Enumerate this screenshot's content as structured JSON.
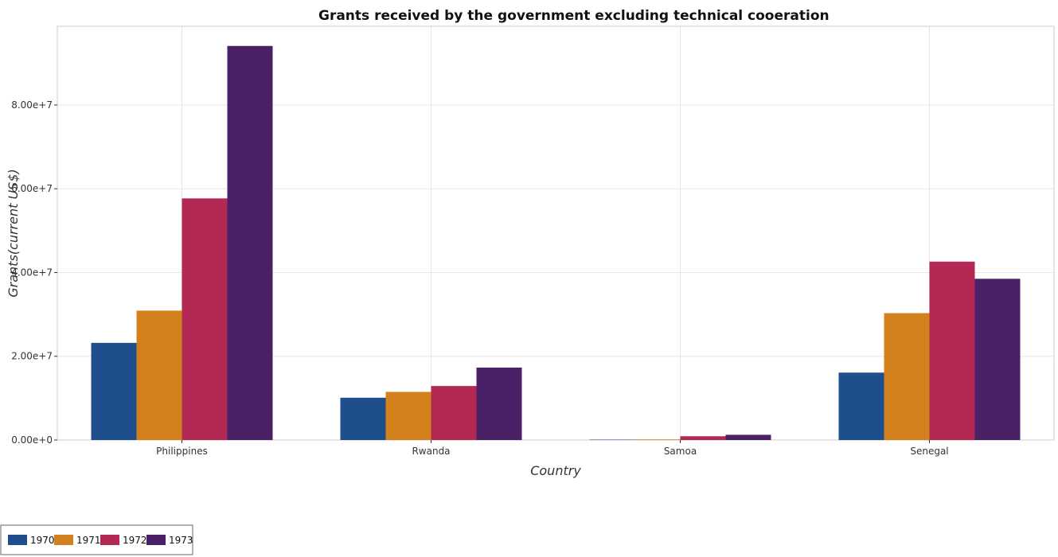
{
  "chart_data": {
    "type": "bar",
    "title": "Grants received by the government excluding technical cooeration",
    "xlabel": "Country",
    "ylabel": "Grants(current US$)",
    "categories": [
      "Philippines",
      "Rwanda",
      "Samoa",
      "Senegal"
    ],
    "series": [
      {
        "name": "1970",
        "color": "#1f4e8c",
        "values": [
          23200000,
          10100000,
          100000,
          16100000
        ]
      },
      {
        "name": "1971",
        "color": "#d2811c",
        "values": [
          30900000,
          11500000,
          150000,
          30300000
        ]
      },
      {
        "name": "1972",
        "color": "#b22a53",
        "values": [
          57700000,
          12900000,
          900000,
          42600000
        ]
      },
      {
        "name": "1973",
        "color": "#4a2066",
        "values": [
          94100000,
          17300000,
          1250000,
          38500000
        ]
      }
    ],
    "yticks": [
      0,
      20000000,
      40000000,
      60000000,
      80000000
    ],
    "ytick_labels": [
      "0.00e+0",
      "2.00e+7",
      "4.00e+7",
      "6.00e+7",
      "8.00e+7"
    ],
    "ylim": [
      0,
      98800000
    ],
    "grid": true,
    "legend_position": "bottom-left"
  }
}
